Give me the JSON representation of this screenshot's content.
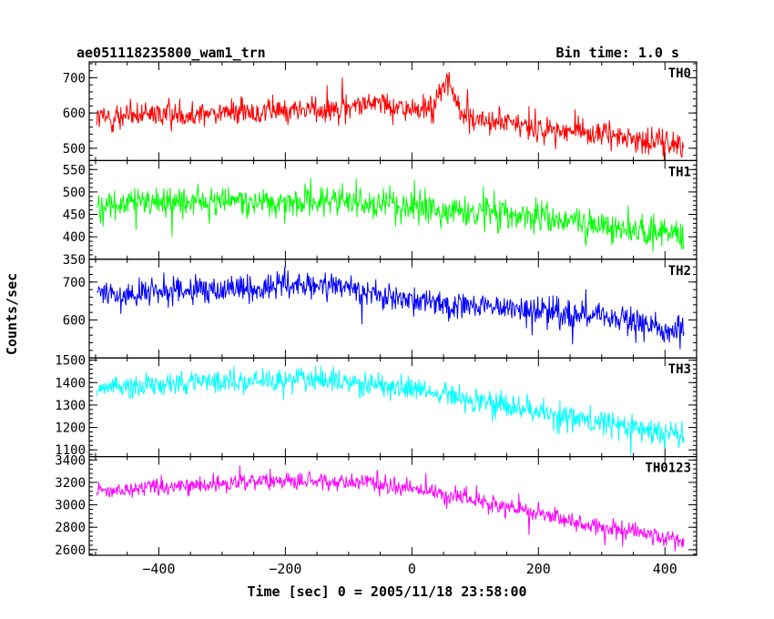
{
  "header": {
    "title": "ae051118235800_wam1_trn",
    "bin_time": "Bin time: 1.0 s"
  },
  "axes": {
    "xlabel": "Time [sec] 0 = 2005/11/18 23:58:00",
    "ylabel": "Counts/sec"
  },
  "chart_data": {
    "type": "line",
    "x_range": [
      -510,
      450
    ],
    "x_ticks": [
      -400,
      -200,
      0,
      200,
      400
    ],
    "x_tick_labels": [
      "−400",
      "−200",
      "0",
      "200",
      "400"
    ],
    "grid": false,
    "panels": [
      {
        "name": "TH0",
        "color": "#ff0000",
        "ylim": [
          465,
          745
        ],
        "y_ticks": [
          500,
          600,
          700
        ],
        "y_tick_labels": [
          "500",
          "600",
          "700"
        ],
        "trend_x": [
          -500,
          -350,
          -200,
          -90,
          -60,
          0,
          35,
          55,
          80,
          150,
          230,
          300,
          360,
          430
        ],
        "trend_y": [
          585,
          600,
          605,
          620,
          635,
          605,
          615,
          700,
          590,
          570,
          550,
          540,
          525,
          510
        ],
        "noise": 26
      },
      {
        "name": "TH1",
        "color": "#00ff00",
        "ylim": [
          350,
          570
        ],
        "y_ticks": [
          350,
          400,
          450,
          500,
          550
        ],
        "y_tick_labels": [
          "350",
          "400",
          "450",
          "500",
          "550"
        ],
        "trend_x": [
          -500,
          -300,
          -150,
          0,
          150,
          300,
          430
        ],
        "trend_y": [
          470,
          480,
          478,
          465,
          450,
          425,
          405
        ],
        "noise": 24
      },
      {
        "name": "TH2",
        "color": "#0000ff",
        "ylim": [
          500,
          760
        ],
        "y_ticks": [
          600,
          700
        ],
        "y_tick_labels": [
          "600",
          "700"
        ],
        "trend_x": [
          -500,
          -300,
          -200,
          -100,
          0,
          150,
          300,
          430
        ],
        "trend_y": [
          665,
          680,
          690,
          685,
          650,
          630,
          610,
          570
        ],
        "noise": 26
      },
      {
        "name": "TH3",
        "color": "#00ffff",
        "ylim": [
          1070,
          1510
        ],
        "y_ticks": [
          1100,
          1200,
          1300,
          1400,
          1500
        ],
        "y_tick_labels": [
          "1100",
          "1200",
          "1300",
          "1400",
          "1500"
        ],
        "trend_x": [
          -500,
          -300,
          -200,
          -100,
          0,
          100,
          200,
          300,
          430
        ],
        "trend_y": [
          1380,
          1405,
          1415,
          1405,
          1375,
          1320,
          1270,
          1225,
          1160
        ],
        "noise": 38
      },
      {
        "name": "TH0123",
        "color": "#ff00ff",
        "ylim": [
          2550,
          3430
        ],
        "y_ticks": [
          2600,
          2800,
          3000,
          3200,
          3400
        ],
        "y_tick_labels": [
          "2600",
          "2800",
          "3000",
          "3200",
          "3400"
        ],
        "trend_x": [
          -500,
          -300,
          -200,
          -100,
          0,
          100,
          200,
          300,
          430
        ],
        "trend_y": [
          3110,
          3190,
          3210,
          3200,
          3140,
          3030,
          2920,
          2800,
          2680
        ],
        "noise": 55
      }
    ]
  }
}
